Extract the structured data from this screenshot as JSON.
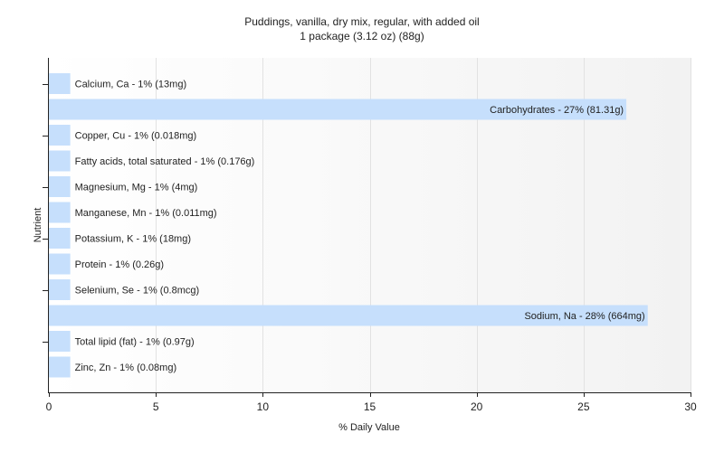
{
  "chart_data": {
    "type": "bar",
    "orientation": "horizontal",
    "title": "Puddings, vanilla, dry mix, regular, with added oil",
    "subtitle": "1 package (3.12 oz) (88g)",
    "xlabel": "% Daily Value",
    "ylabel": "Nutrient",
    "xlim": [
      0,
      30
    ],
    "xticks": [
      0,
      5,
      10,
      15,
      20,
      25,
      30
    ],
    "grid": true,
    "bar_color": "#c6dffc",
    "categories": [
      "Calcium, Ca",
      "Carbohydrates",
      "Copper, Cu",
      "Fatty acids, total saturated",
      "Magnesium, Mg",
      "Manganese, Mn",
      "Potassium, K",
      "Protein",
      "Selenium, Se",
      "Sodium, Na",
      "Total lipid (fat)",
      "Zinc, Zn"
    ],
    "values": [
      1,
      27,
      1,
      1,
      1,
      1,
      1,
      1,
      1,
      28,
      1,
      1
    ],
    "labels": [
      "Calcium, Ca - 1% (13mg)",
      "Carbohydrates - 27% (81.31g)",
      "Copper, Cu - 1% (0.018mg)",
      "Fatty acids, total saturated - 1% (0.176g)",
      "Magnesium, Mg - 1% (4mg)",
      "Manganese, Mn - 1% (0.011mg)",
      "Potassium, K - 1% (18mg)",
      "Protein - 1% (0.26g)",
      "Selenium, Se - 1% (0.8mcg)",
      "Sodium, Na - 28% (664mg)",
      "Total lipid (fat) - 1% (0.97g)",
      "Zinc, Zn - 1% (0.08mg)"
    ]
  }
}
